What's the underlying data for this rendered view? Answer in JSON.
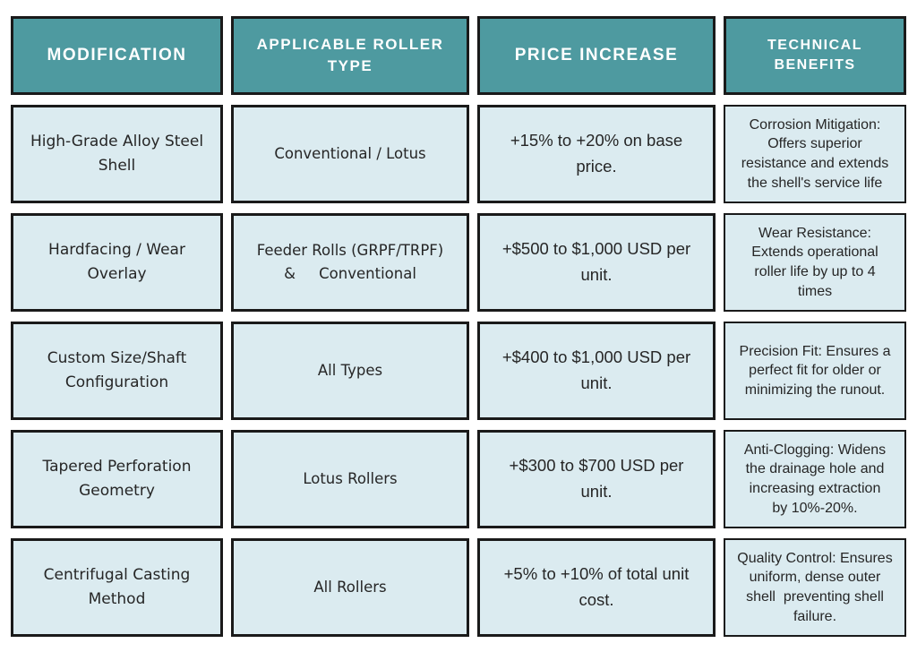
{
  "colors": {
    "header_bg": "#4E9AA0",
    "header_text": "#FFFFFF",
    "cell_bg": "#DBEBF0",
    "border": "#1A1A1A",
    "body_text": "#262626",
    "page_bg": "#FFFFFF"
  },
  "table": {
    "headers": [
      "MODIFICATION",
      "APPLICABLE ROLLER\nTYPE",
      "PRICE INCREASE",
      "TECHNICAL\nBENEFITS"
    ],
    "rows": [
      {
        "modification": "High-Grade Alloy Steel\nShell",
        "roller_type": "Conventional / Lotus",
        "price_increase": "+15% to +20% on base\nprice.",
        "benefits": "Corrosion Mitigation:\nOffers superior\nresistance and extends\nthe shell's service life"
      },
      {
        "modification": "Hardfacing / Wear\nOverlay",
        "roller_type": "Feeder Rolls (GRPF/TRPF)\n&     Conventional",
        "price_increase": "+$500 to $1,000 USD per\nunit.",
        "benefits": "Wear Resistance:\nExtends operational\nroller life by up to 4\ntimes"
      },
      {
        "modification": "Custom Size/Shaft\nConfiguration",
        "roller_type": "All Types",
        "price_increase": "+$400 to $1,000 USD per\nunit.",
        "benefits": "Precision Fit: Ensures a\nperfect fit for older or\nminimizing the runout."
      },
      {
        "modification": "Tapered Perforation\nGeometry",
        "roller_type": "Lotus Rollers",
        "price_increase": "+$300 to $700 USD per\nunit.",
        "benefits": "Anti-Clogging: Widens\nthe drainage hole and\nincreasing extraction\nby 10%-20%."
      },
      {
        "modification": "Centrifugal Casting\nMethod",
        "roller_type": "All Rollers",
        "price_increase": "+5% to +10% of total unit\ncost.",
        "benefits": "Quality Control: Ensures\nuniform, dense outer\nshell  preventing shell\nfailure."
      }
    ]
  }
}
